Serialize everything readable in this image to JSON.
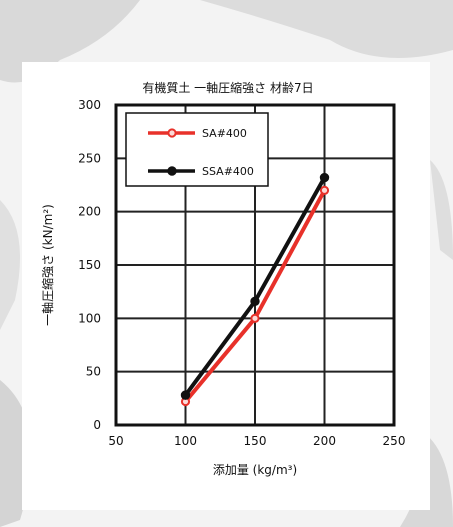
{
  "chart_data": {
    "type": "line",
    "title": "有機質土 一軸圧縮強さ 材齢7日",
    "xlabel": "添加量 (kg/m³)",
    "ylabel": "一軸圧縮強さ (kN/m²)",
    "xlim": [
      50,
      250
    ],
    "ylim": [
      0,
      300
    ],
    "xticks": [
      50,
      100,
      150,
      200,
      250
    ],
    "yticks": [
      0,
      50,
      100,
      150,
      200,
      250,
      300
    ],
    "grid": true,
    "legend_position": "top-left",
    "series": [
      {
        "name": "SA#400",
        "color": "#e8312a",
        "x": [
          100,
          150,
          200
        ],
        "y": [
          22,
          100,
          220
        ]
      },
      {
        "name": "SSA#400",
        "color": "#111111",
        "x": [
          100,
          150,
          200
        ],
        "y": [
          28,
          116,
          232
        ]
      }
    ]
  }
}
